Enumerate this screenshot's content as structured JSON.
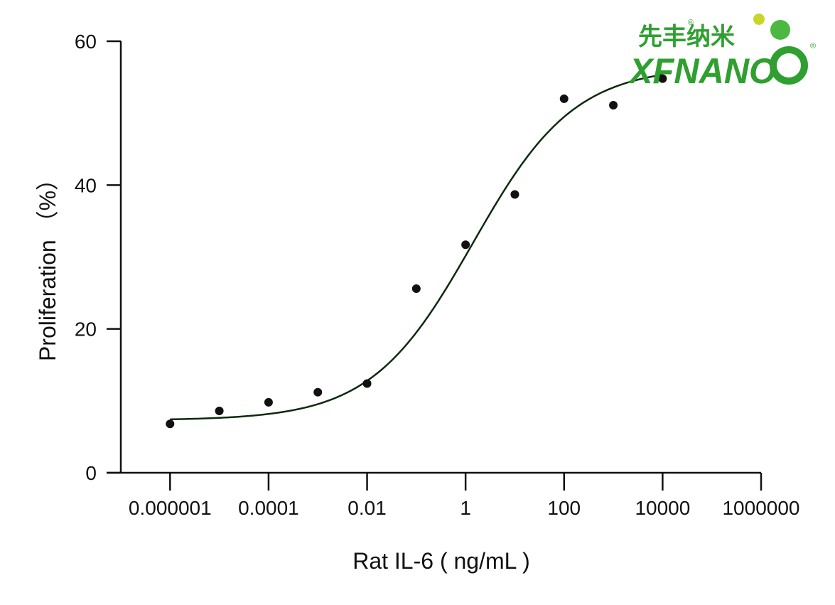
{
  "logo": {
    "name_cn": "先丰纳米",
    "name_en": "XFNANO",
    "registered_mark": "®"
  },
  "chart_data": {
    "type": "scatter",
    "title": "",
    "xlabel": "Rat IL-6 ( ng/mL )",
    "ylabel": "Proliferation （%）",
    "x_scale": "log",
    "xlim": [
      1e-07,
      1000000
    ],
    "ylim": [
      0,
      60
    ],
    "x_ticks": [
      1e-06,
      0.0001,
      0.01,
      1,
      100,
      10000,
      1000000
    ],
    "x_tick_labels": [
      "0.000001",
      "0.0001",
      "0.01",
      "1",
      "100",
      "10000",
      "1000000"
    ],
    "y_ticks": [
      0,
      20,
      40,
      60
    ],
    "y_tick_labels": [
      "0",
      "20",
      "40",
      "60"
    ],
    "grid": false,
    "legend": "none",
    "series": [
      {
        "points": [
          {
            "x": 1e-06,
            "y": 6.8
          },
          {
            "x": 1e-05,
            "y": 8.6
          },
          {
            "x": 0.0001,
            "y": 9.8
          },
          {
            "x": 0.001,
            "y": 11.2
          },
          {
            "x": 0.01,
            "y": 12.4
          },
          {
            "x": 0.1,
            "y": 25.6
          },
          {
            "x": 1,
            "y": 31.7
          },
          {
            "x": 10,
            "y": 38.7
          },
          {
            "x": 100,
            "y": 52.0
          },
          {
            "x": 1000,
            "y": 51.1
          },
          {
            "x": 10000,
            "y": 54.8
          }
        ]
      }
    ],
    "fit_curve": {
      "model": "4PL",
      "bottom": 7.3,
      "top": 56.5,
      "ec50": 1.4,
      "hill": 0.42,
      "x_range": [
        1e-06,
        10000
      ]
    },
    "colors": {
      "points": "#111111",
      "curve": "#0d2a0d",
      "axes": "#111111",
      "logo": "#2fa02f"
    }
  }
}
